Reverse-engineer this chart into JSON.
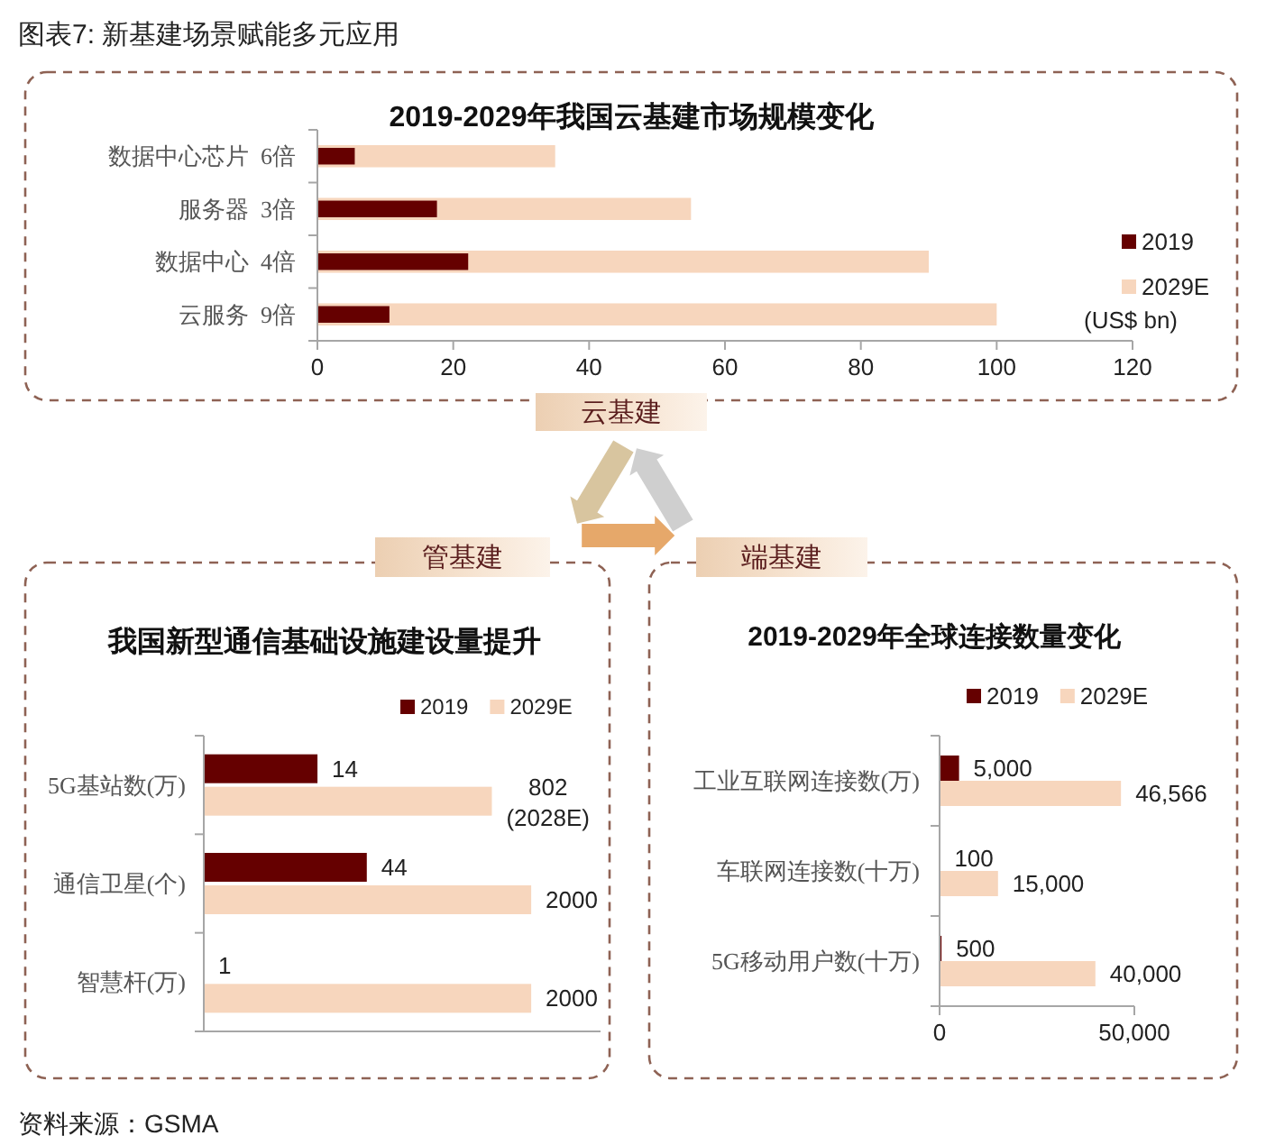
{
  "chart_data": [
    {
      "type": "bar",
      "orientation": "horizontal",
      "title": "2019-2029年我国云基建市场规模变化",
      "categories": [
        "数据中心芯片  6倍",
        "服务器  3倍",
        "数据中心  4倍",
        "云服务  9倍"
      ],
      "series": [
        {
          "name": "2019",
          "color": "#650000",
          "values": [
            5.5,
            17.6,
            22.2,
            10.6
          ]
        },
        {
          "name": "2029E",
          "color": "#f7d6bd",
          "values": [
            35,
            55,
            90,
            100
          ]
        }
      ],
      "xlim": [
        0,
        120
      ],
      "xticks": [
        0,
        20,
        40,
        60,
        80,
        100,
        120
      ],
      "legend": "right",
      "annotations": [
        "图表7: 新基建场景赋能多元应用",
        "云基建",
        "(US$ bn)"
      ]
    },
    {
      "type": "bar",
      "orientation": "horizontal",
      "title": "我国新型通信基础设施建设量提升",
      "categories": [
        "5G基站数(万)",
        "通信卫星(个)",
        "智慧杆(万)"
      ],
      "series": [
        {
          "name": "2019",
          "color": "#650000",
          "values": [
            14,
            44,
            1
          ]
        },
        {
          "name": "2029E",
          "color": "#f7d6bd",
          "values": [
            802,
            2000,
            2000
          ],
          "value_labels": [
            "802\n(2028E)",
            "2000",
            "2000"
          ]
        }
      ],
      "data_labels": true,
      "log": "x",
      "xlim": [
        1,
        10000
      ],
      "tick_labels": "y",
      "legend": "top",
      "annotations": [
        "管基建"
      ]
    },
    {
      "type": "bar",
      "orientation": "horizontal",
      "title": "2019-2029年全球连接数量变化",
      "categories": [
        "工业互联网连接数(万)",
        "车联网连接数(十万)",
        "5G移动用户数(十万)"
      ],
      "series": [
        {
          "name": "2019",
          "color": "#650000",
          "values": [
            5000,
            100,
            500
          ],
          "value_labels": [
            "5,000",
            "100",
            "500"
          ]
        },
        {
          "name": "2029E",
          "color": "#f7d6bd",
          "values": [
            46566,
            15000,
            40000
          ],
          "value_labels": [
            "46,566",
            "15,000",
            "40,000"
          ]
        }
      ],
      "xlim": [
        0,
        50000
      ],
      "xticks": [
        0,
        {
          "value": 50000,
          "label": "50,000"
        }
      ],
      "legend": "top",
      "annotations": [
        "端基建",
        "资料来源：GSMA"
      ]
    }
  ]
}
